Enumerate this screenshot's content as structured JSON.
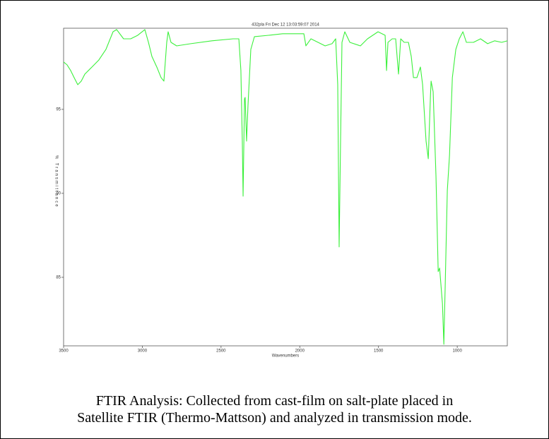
{
  "chart_data": {
    "type": "line",
    "title": "432pla  Fri Dec 12 13:03:59:07 2014",
    "xlabel": "Wavenumbers",
    "ylabel": "% Transmittance",
    "xlim": [
      3500,
      682
    ],
    "xticks": [
      3500,
      3000,
      2500,
      2000,
      1500,
      1000
    ],
    "ylim": [
      80.92,
      99.83
    ],
    "yticks": [
      95,
      90,
      85
    ],
    "series": [
      {
        "color": "#3cf03c",
        "x": [
          3500,
          3478,
          3455,
          3433,
          3410,
          3388,
          3365,
          3320,
          3276,
          3231,
          3186,
          3163,
          3119,
          3074,
          3029,
          2984,
          2961,
          2939,
          2908,
          2881,
          2863,
          2845,
          2836,
          2818,
          2782,
          2692,
          2558,
          2423,
          2387,
          2374,
          2365,
          2360,
          2351,
          2347,
          2338,
          2329,
          2311,
          2288,
          2198,
          2109,
          1974,
          1961,
          1929,
          1839,
          1795,
          1772,
          1759,
          1750,
          1741,
          1732,
          1714,
          1682,
          1615,
          1570,
          1503,
          1458,
          1449,
          1440,
          1413,
          1391,
          1373,
          1359,
          1337,
          1310,
          1292,
          1278,
          1256,
          1234,
          1220,
          1198,
          1184,
          1170,
          1166,
          1153,
          1135,
          1121,
          1112,
          1094,
          1085,
          1076,
          1063,
          1049,
          1031,
          1009,
          987,
          964,
          942,
          897,
          852,
          807,
          763,
          718,
          682
        ],
        "values": [
          97.82,
          97.65,
          97.31,
          96.89,
          96.47,
          96.68,
          97.1,
          97.52,
          97.94,
          98.57,
          99.62,
          99.75,
          99.2,
          99.2,
          99.41,
          99.75,
          98.99,
          98.15,
          97.52,
          96.89,
          96.68,
          98.99,
          99.62,
          98.99,
          98.78,
          98.91,
          99.08,
          99.2,
          99.2,
          97.31,
          93.11,
          89.83,
          95.63,
          95.71,
          93.11,
          95.21,
          98.57,
          99.33,
          99.41,
          99.5,
          99.5,
          98.78,
          99.2,
          98.78,
          98.91,
          99.2,
          96.47,
          86.81,
          93.11,
          98.99,
          99.62,
          98.99,
          98.78,
          99.2,
          99.62,
          99.41,
          97.31,
          98.99,
          99.2,
          99.2,
          97.1,
          99.2,
          98.99,
          98.99,
          98.15,
          96.89,
          96.89,
          97.52,
          96.47,
          93.11,
          92.06,
          95.84,
          96.68,
          96.05,
          91.01,
          85.34,
          85.55,
          83.44,
          81.01,
          84.71,
          90.17,
          92.27,
          96.89,
          98.57,
          99.2,
          99.62,
          98.99,
          98.99,
          99.2,
          98.91,
          99.08,
          98.99,
          99.08
        ]
      }
    ]
  },
  "caption": [
    "FTIR Analysis: Collected from cast-film on salt-plate placed in",
    "Satellite FTIR (Thermo-Mattson) and analyzed in transmission mode."
  ]
}
